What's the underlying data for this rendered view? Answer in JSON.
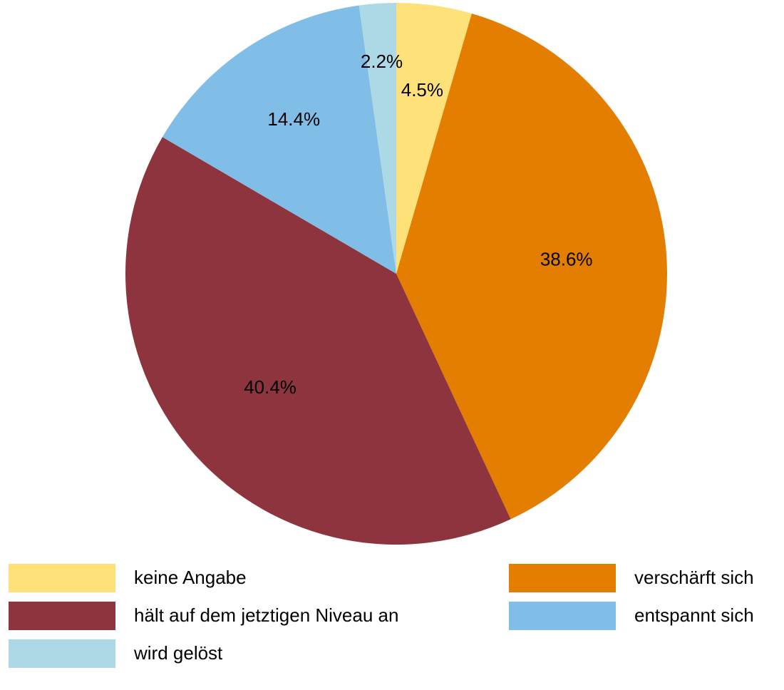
{
  "chart_data": {
    "type": "pie",
    "categories": [
      "keine Angabe",
      "verschärft sich",
      "hält auf dem jetztigen Niveau an",
      "entspannt sich",
      "wird gelöst"
    ],
    "values": [
      4.5,
      38.6,
      40.4,
      14.4,
      2.2
    ],
    "value_labels": [
      "4.5%",
      "38.6%",
      "40.4%",
      "14.4%",
      "2.2%"
    ],
    "colors": [
      "#FFE17A",
      "#E37E00",
      "#8E343E",
      "#80BEE8",
      "#ADD8E6"
    ],
    "legend": "bottom"
  }
}
